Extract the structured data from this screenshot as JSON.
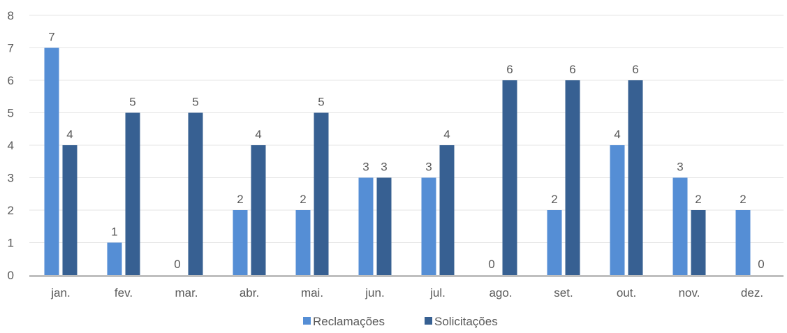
{
  "chart_data": {
    "type": "bar",
    "title": "",
    "xlabel": "",
    "ylabel": "",
    "categories": [
      "jan.",
      "fev.",
      "mar.",
      "abr.",
      "mai.",
      "jun.",
      "jul.",
      "ago.",
      "set.",
      "out.",
      "nov.",
      "dez."
    ],
    "series": [
      {
        "name": "Reclamações",
        "values": [
          7,
          1,
          0,
          2,
          2,
          3,
          3,
          0,
          2,
          4,
          3,
          2
        ],
        "color": "#558ED5"
      },
      {
        "name": "Solicitações",
        "values": [
          4,
          5,
          5,
          4,
          5,
          3,
          4,
          6,
          6,
          6,
          2,
          0
        ],
        "color": "#376092"
      }
    ],
    "ylim": [
      0,
      8
    ],
    "yticks": [
      0,
      1,
      2,
      3,
      4,
      5,
      6,
      7,
      8
    ],
    "grid": true,
    "legend": "bottom",
    "data_labels": true
  }
}
